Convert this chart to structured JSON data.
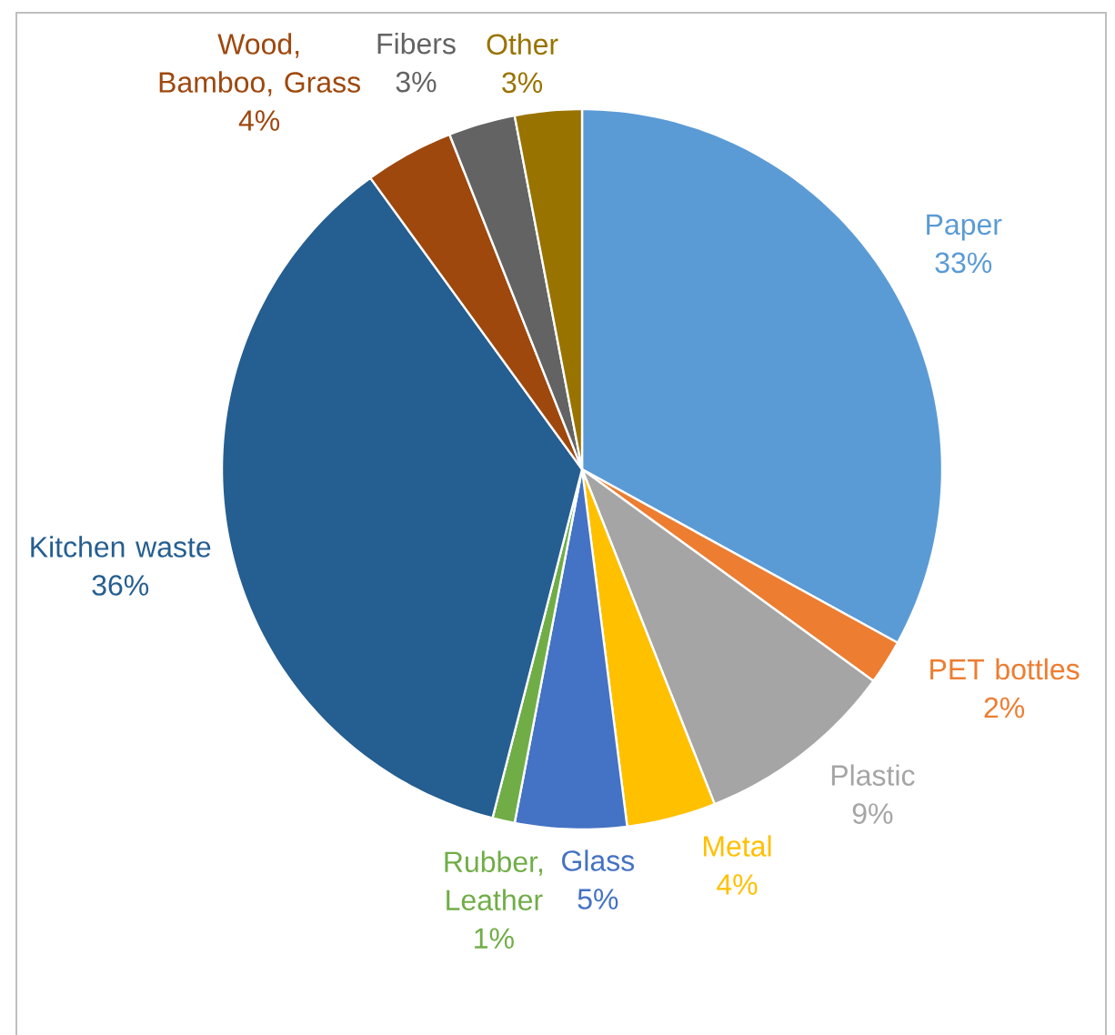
{
  "chart_data": {
    "type": "pie",
    "categories": [
      "Paper",
      "PET bottles",
      "Plastic",
      "Metal",
      "Glass",
      "Rubber, Leather",
      "Kitchen waste",
      "Wood, Bamboo, Grass",
      "Fibers",
      "Other"
    ],
    "values": [
      33,
      2,
      9,
      4,
      5,
      1,
      36,
      4,
      3,
      3
    ],
    "value_labels": [
      "33%",
      "2%",
      "9%",
      "4%",
      "5%",
      "1%",
      "36%",
      "4%",
      "3%",
      "3%"
    ],
    "colors": [
      "#5b9bd5",
      "#ed7d31",
      "#a5a5a5",
      "#ffc000",
      "#4472c4",
      "#70ad47",
      "#255e91",
      "#9e480e",
      "#636363",
      "#997300"
    ]
  }
}
